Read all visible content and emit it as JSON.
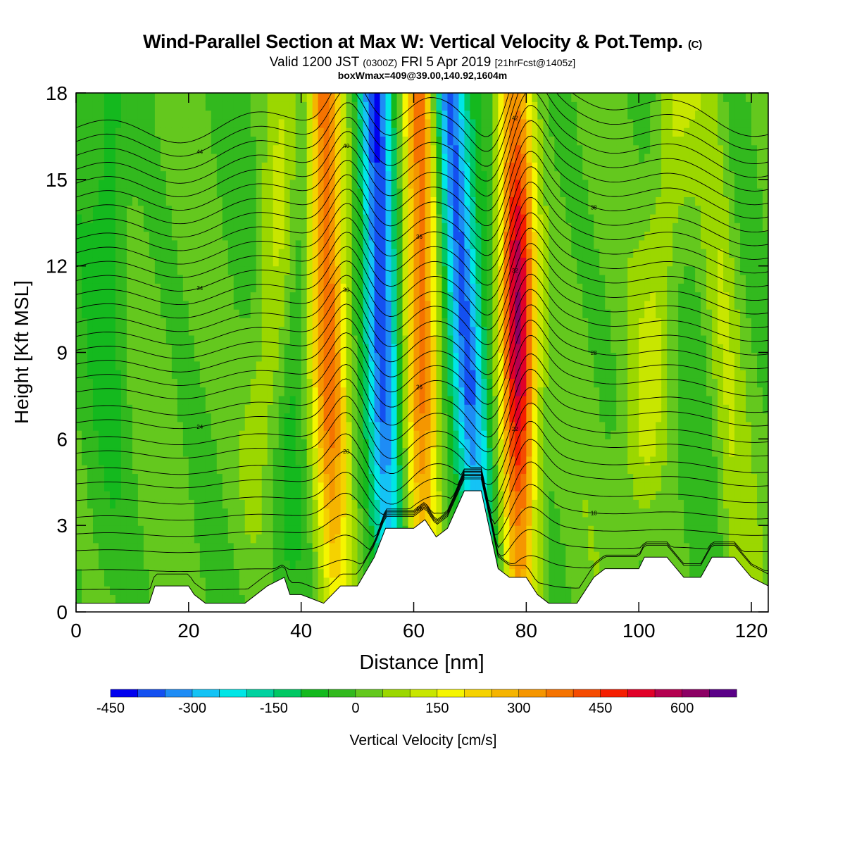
{
  "header": {
    "title_main": "Wind-Parallel Section at Max W: Vertical Velocity & Pot.Temp.",
    "title_copyright": "(C)",
    "valid_prefix": "Valid 1200 JST",
    "valid_utc": "(0300Z)",
    "valid_date": "FRI 5 Apr 2019",
    "valid_forecast": "[21hrFcst@1405z]",
    "boxwmax": "boxWmax=409@39.00,140.92,1604m"
  },
  "chart_data": {
    "type": "heatmap",
    "xlabel": "Distance [nm]",
    "ylabel": "Height [Kft MSL]",
    "xlim": [
      0,
      123
    ],
    "ylim": [
      0,
      18
    ],
    "x_ticks": [
      0,
      20,
      40,
      60,
      80,
      100,
      120
    ],
    "y_ticks": [
      0,
      3,
      6,
      9,
      12,
      15,
      18
    ],
    "colorbar": {
      "label": "Vertical Velocity [cm/s]",
      "tick_labels": [
        "-450",
        "-300",
        "-150",
        "0",
        "150",
        "300",
        "450",
        "600"
      ],
      "tick_values": [
        -450,
        -300,
        -150,
        0,
        150,
        300,
        450,
        600
      ],
      "min": -450,
      "max": 700,
      "step": 50,
      "colors": [
        "#0000ee",
        "#1450f0",
        "#1e8cf5",
        "#14c3f5",
        "#00e6e6",
        "#00d2a0",
        "#00c864",
        "#14b91e",
        "#32b91e",
        "#64c81e",
        "#9bd700",
        "#c8e600",
        "#f5f500",
        "#f5d200",
        "#f5b400",
        "#f59600",
        "#f57300",
        "#f54b00",
        "#f51e00",
        "#e10028",
        "#b40050",
        "#8c0064",
        "#5a0087"
      ]
    },
    "w_bands": [
      {
        "x_bottom": 46,
        "x_top": 44,
        "w": 400
      },
      {
        "x_bottom": 56,
        "x_top": 53,
        "w": -430
      },
      {
        "x_bottom": 62,
        "x_top": 61,
        "w": 380
      },
      {
        "x_bottom": 73,
        "x_top": 66,
        "w": -380
      },
      {
        "x_bottom": 79,
        "x_top": 78,
        "w": 560
      }
    ],
    "terrain_kft": [
      {
        "x": 0,
        "h": 0.3
      },
      {
        "x": 13,
        "h": 0.3
      },
      {
        "x": 14,
        "h": 0.9
      },
      {
        "x": 20,
        "h": 0.9
      },
      {
        "x": 21,
        "h": 0.6
      },
      {
        "x": 23,
        "h": 0.3
      },
      {
        "x": 30,
        "h": 0.3
      },
      {
        "x": 34,
        "h": 0.9
      },
      {
        "x": 37,
        "h": 1.2
      },
      {
        "x": 38,
        "h": 0.6
      },
      {
        "x": 40,
        "h": 0.6
      },
      {
        "x": 44,
        "h": 0.3
      },
      {
        "x": 47,
        "h": 0.9
      },
      {
        "x": 50,
        "h": 0.9
      },
      {
        "x": 53,
        "h": 1.9
      },
      {
        "x": 55,
        "h": 2.9
      },
      {
        "x": 60,
        "h": 2.9
      },
      {
        "x": 62,
        "h": 3.2
      },
      {
        "x": 64,
        "h": 2.6
      },
      {
        "x": 66,
        "h": 2.9
      },
      {
        "x": 69,
        "h": 4.2
      },
      {
        "x": 72,
        "h": 4.2
      },
      {
        "x": 75,
        "h": 1.5
      },
      {
        "x": 77,
        "h": 1.2
      },
      {
        "x": 80,
        "h": 1.2
      },
      {
        "x": 82,
        "h": 0.6
      },
      {
        "x": 84,
        "h": 0.3
      },
      {
        "x": 89,
        "h": 0.3
      },
      {
        "x": 92,
        "h": 1.2
      },
      {
        "x": 94,
        "h": 1.5
      },
      {
        "x": 100,
        "h": 1.5
      },
      {
        "x": 101,
        "h": 1.9
      },
      {
        "x": 105,
        "h": 1.9
      },
      {
        "x": 108,
        "h": 1.2
      },
      {
        "x": 111,
        "h": 1.2
      },
      {
        "x": 113,
        "h": 1.9
      },
      {
        "x": 117,
        "h": 1.9
      },
      {
        "x": 120,
        "h": 1.2
      },
      {
        "x": 123,
        "h": 0.9
      }
    ],
    "theta_contours": [
      {
        "h": 0.8,
        "label": ""
      },
      {
        "h": 1.5,
        "label": ""
      },
      {
        "h": 2.2,
        "label": "16"
      },
      {
        "h": 2.8,
        "label": ""
      },
      {
        "h": 3.4,
        "label": "18"
      },
      {
        "h": 4.0,
        "label": ""
      },
      {
        "h": 4.6,
        "label": "20"
      },
      {
        "h": 5.1,
        "label": ""
      },
      {
        "h": 5.7,
        "label": "22"
      },
      {
        "h": 6.2,
        "label": ""
      },
      {
        "h": 6.8,
        "label": "24"
      },
      {
        "h": 7.3,
        "label": ""
      },
      {
        "h": 7.9,
        "label": "26"
      },
      {
        "h": 8.4,
        "label": ""
      },
      {
        "h": 8.9,
        "label": "28"
      },
      {
        "h": 9.4,
        "label": ""
      },
      {
        "h": 9.9,
        "label": "30"
      },
      {
        "h": 10.4,
        "label": ""
      },
      {
        "h": 10.9,
        "label": "32"
      },
      {
        "h": 11.4,
        "label": ""
      },
      {
        "h": 11.9,
        "label": "34"
      },
      {
        "h": 12.4,
        "label": ""
      },
      {
        "h": 12.9,
        "label": "36"
      },
      {
        "h": 13.4,
        "label": ""
      },
      {
        "h": 13.9,
        "label": "38"
      },
      {
        "h": 14.4,
        "label": ""
      },
      {
        "h": 14.9,
        "label": "40"
      },
      {
        "h": 15.4,
        "label": ""
      },
      {
        "h": 15.9,
        "label": "42"
      },
      {
        "h": 16.4,
        "label": ""
      },
      {
        "h": 16.9,
        "label": "44"
      },
      {
        "h": 17.4,
        "label": ""
      }
    ]
  }
}
